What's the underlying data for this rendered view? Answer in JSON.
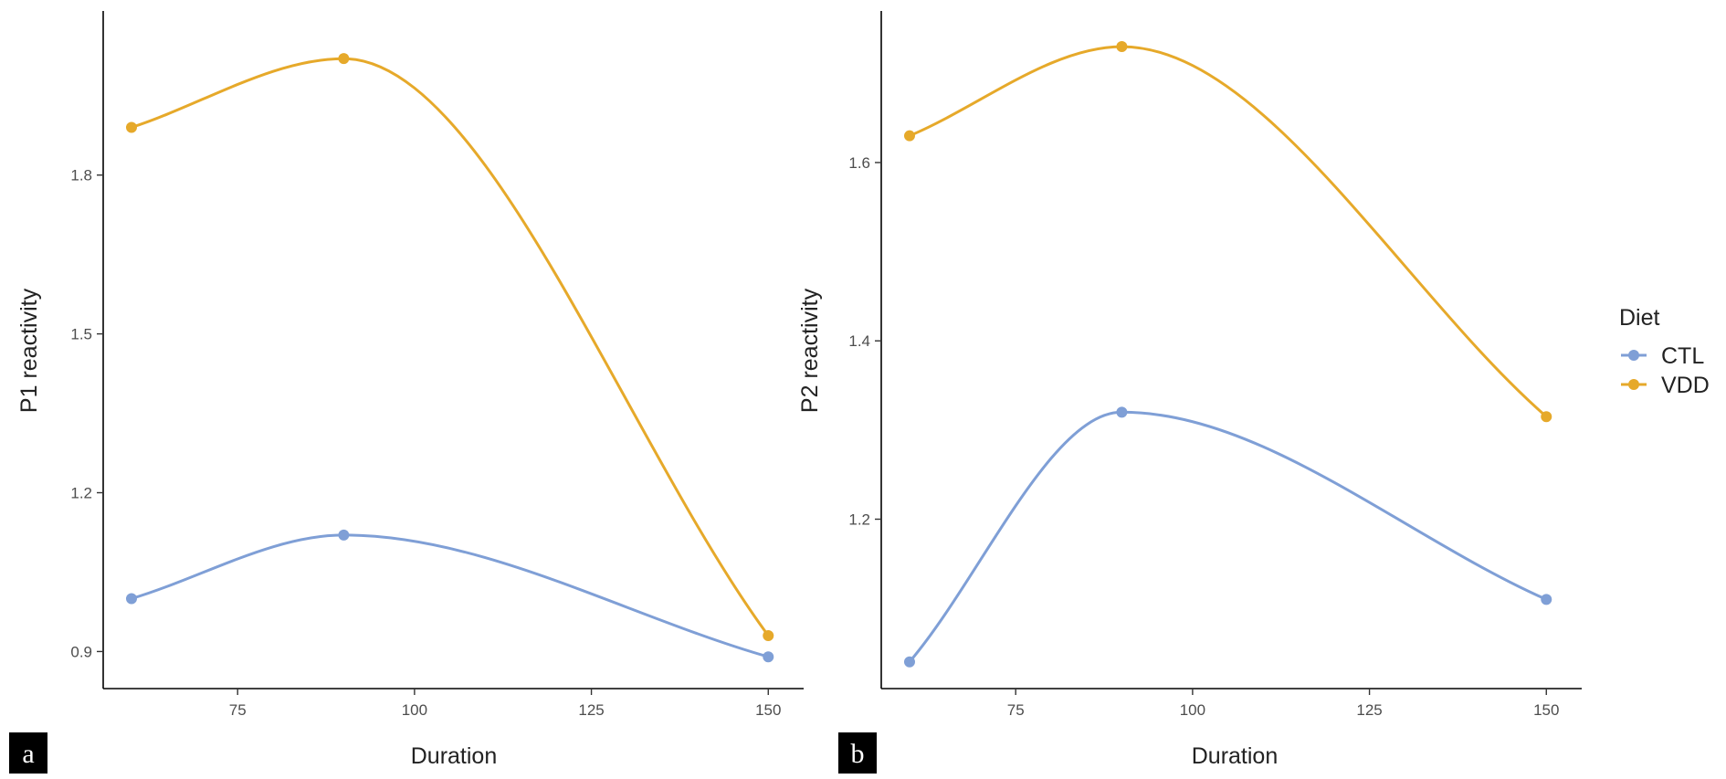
{
  "chart_data": [
    {
      "type": "line",
      "panel_label": "a",
      "xlabel": "Duration",
      "ylabel": "P1 reactivity",
      "xlim": [
        56,
        155
      ],
      "ylim": [
        0.83,
        2.11
      ],
      "x_ticks": [
        75,
        100,
        125,
        150
      ],
      "y_ticks": [
        0.9,
        1.2,
        1.5,
        1.8
      ],
      "y_tick_labels": [
        "0.9",
        "1.2",
        "1.5",
        "1.8"
      ],
      "x": [
        60,
        90,
        150
      ],
      "series": [
        {
          "name": "CTL",
          "values": [
            1.0,
            1.12,
            0.89
          ]
        },
        {
          "name": "VDD",
          "values": [
            1.89,
            2.02,
            0.93
          ]
        }
      ]
    },
    {
      "type": "line",
      "panel_label": "b",
      "xlabel": "Duration",
      "ylabel": "P2 reactivity",
      "xlim": [
        56,
        155
      ],
      "ylim": [
        1.01,
        1.77
      ],
      "x_ticks": [
        75,
        100,
        125,
        150
      ],
      "y_ticks": [
        1.2,
        1.4,
        1.6
      ],
      "y_tick_labels": [
        "1.2",
        "1.4",
        "1.6"
      ],
      "x": [
        60,
        90,
        150
      ],
      "series": [
        {
          "name": "CTL",
          "values": [
            1.04,
            1.32,
            1.11
          ]
        },
        {
          "name": "VDD",
          "values": [
            1.63,
            1.73,
            1.315
          ]
        }
      ]
    }
  ],
  "legend": {
    "title": "Diet",
    "placement": "right",
    "entries": [
      {
        "name": "CTL",
        "color": "#7f9fd6"
      },
      {
        "name": "VDD",
        "color": "#e6a92a"
      }
    ]
  }
}
